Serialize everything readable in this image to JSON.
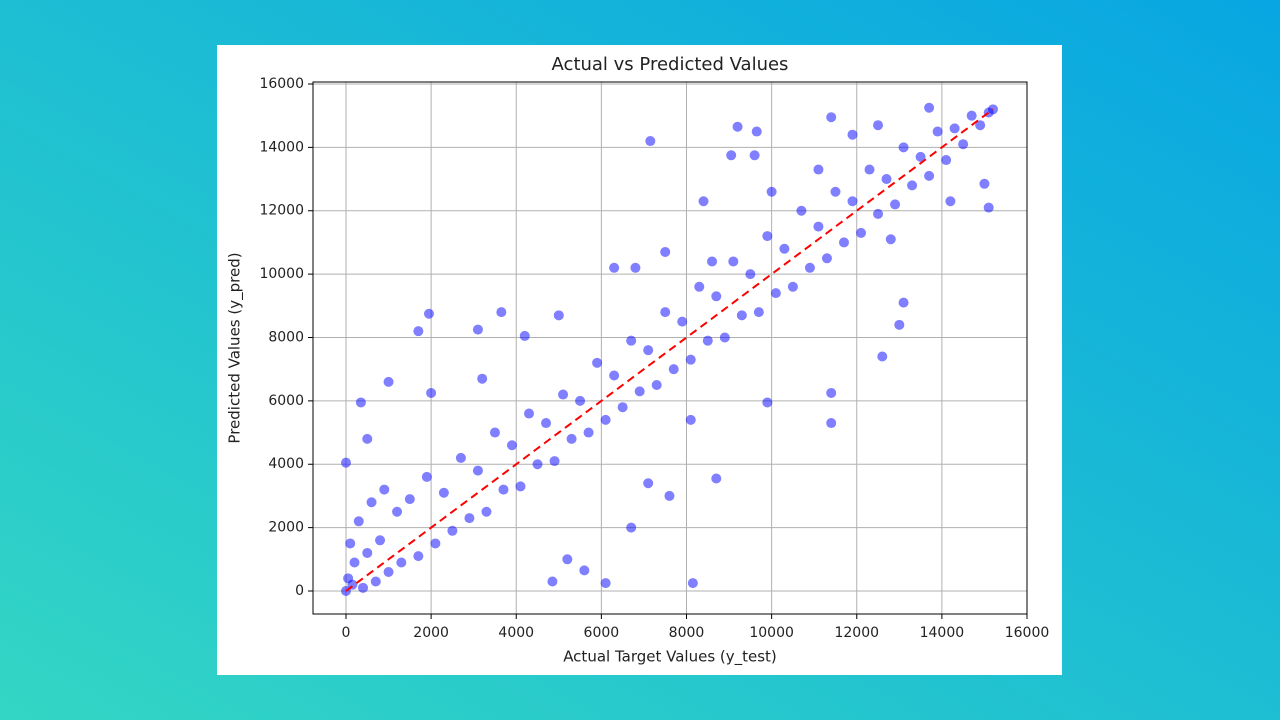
{
  "chart_data": {
    "type": "scatter",
    "title": "Actual vs Predicted Values",
    "x_label": "Actual Target Values (y_test)",
    "y_label": "Predicted Values (y_pred)",
    "xlim": [
      -775,
      16000
    ],
    "ylim": [
      -726,
      16063
    ],
    "xticks": [
      0,
      2000,
      4000,
      6000,
      8000,
      10000,
      12000,
      14000,
      16000
    ],
    "yticks": [
      0,
      2000,
      4000,
      6000,
      8000,
      10000,
      12000,
      14000,
      16000
    ],
    "grid": true,
    "color": "#0000ff",
    "opacity": 0.5,
    "x": [
      7150,
      9200,
      9650,
      9050,
      9600,
      11400,
      13700,
      15000,
      15100,
      14200,
      12800,
      13100,
      13000,
      12600,
      11400,
      11400,
      9900,
      8700,
      8150,
      6100,
      4850,
      5600,
      7100,
      7600,
      6700,
      8100,
      1700,
      1950,
      1000,
      350,
      500,
      0,
      3100,
      3650,
      4200,
      5000,
      6800,
      6300,
      7500,
      8400,
      10000,
      2000,
      3200,
      8600,
      11100,
      12500,
      11900,
      5200,
      0,
      50,
      100,
      150,
      200,
      300,
      400,
      500,
      600,
      700,
      800,
      900,
      1000,
      1200,
      1300,
      1500,
      1700,
      1900,
      2100,
      2300,
      2500,
      2700,
      2900,
      3100,
      3300,
      3500,
      3700,
      3900,
      4100,
      4300,
      4500,
      4700,
      4900,
      5100,
      5300,
      5500,
      5700,
      5900,
      6100,
      6300,
      6500,
      6700,
      6900,
      7100,
      7300,
      7500,
      7700,
      7900,
      8100,
      8300,
      8500,
      8700,
      8900,
      9100,
      9300,
      9500,
      9700,
      9900,
      10100,
      10300,
      10500,
      10700,
      10900,
      11100,
      11300,
      11500,
      11700,
      11900,
      12100,
      12300,
      12500,
      12700,
      12900,
      13100,
      13300,
      13500,
      13700,
      13900,
      14100,
      14300,
      14500,
      14700,
      14900,
      15100,
      15200
    ],
    "values": [
      14200,
      14650,
      14500,
      13750,
      13750,
      14950,
      15250,
      12850,
      12100,
      12300,
      11100,
      9100,
      8400,
      7400,
      6250,
      5300,
      5950,
      3550,
      250,
      250,
      300,
      650,
      3400,
      3000,
      2000,
      5400,
      8200,
      8750,
      6600,
      5950,
      4800,
      4050,
      8250,
      8800,
      8050,
      8700,
      10200,
      10200,
      10700,
      12300,
      12600,
      6250,
      6700,
      10400,
      13300,
      14700,
      14400,
      1000,
      0,
      400,
      1500,
      200,
      900,
      2200,
      100,
      1200,
      2800,
      300,
      1600,
      3200,
      600,
      2500,
      900,
      2900,
      1100,
      3600,
      1500,
      3100,
      1900,
      4200,
      2300,
      3800,
      2500,
      5000,
      3200,
      4600,
      3300,
      5600,
      4000,
      5300,
      4100,
      6200,
      4800,
      6000,
      5000,
      7200,
      5400,
      6800,
      5800,
      7900,
      6300,
      7600,
      6500,
      8800,
      7000,
      8500,
      7300,
      9600,
      7900,
      9300,
      8000,
      10400,
      8700,
      10000,
      8800,
      11200,
      9400,
      10800,
      9600,
      12000,
      10200,
      11500,
      10500,
      12600,
      11000,
      12300,
      11300,
      13300,
      11900,
      13000,
      12200,
      14000,
      12800,
      13700,
      13100,
      14500,
      13600,
      14600,
      14100,
      15000,
      14700,
      15100,
      15200
    ],
    "reference_line": {
      "x": [
        0,
        15200
      ],
      "values": [
        0,
        15200
      ],
      "color": "#ff0000"
    }
  }
}
